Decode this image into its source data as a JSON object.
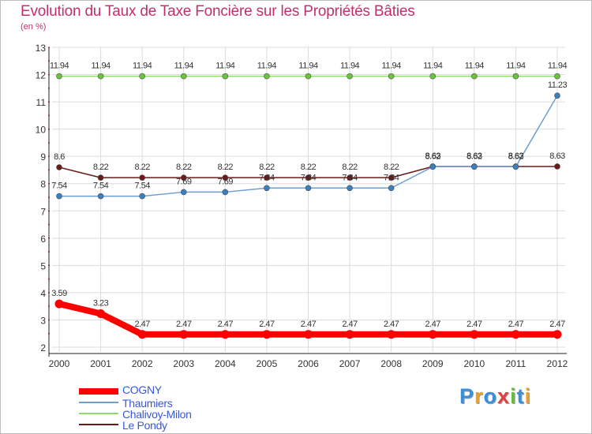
{
  "chart_data": {
    "type": "line",
    "title": "Evolution du Taux de Taxe Foncière sur les Propriétés Bâties",
    "ylabel": "(en %)",
    "xlabel": "",
    "ylim": [
      2,
      13
    ],
    "yticks": [
      2,
      3,
      4,
      5,
      6,
      7,
      8,
      9,
      10,
      11,
      12,
      13
    ],
    "categories": [
      "2000",
      "2001",
      "2002",
      "2003",
      "2004",
      "2005",
      "2006",
      "2007",
      "2008",
      "2009",
      "2010",
      "2011",
      "2012"
    ],
    "series": [
      {
        "name": "Le Pondy",
        "color": "#6b1a1a",
        "marker": "#6b1a1a",
        "values": [
          8.6,
          8.22,
          8.22,
          8.22,
          8.22,
          8.22,
          8.22,
          8.22,
          8.22,
          8.63,
          8.63,
          8.63,
          8.63
        ],
        "labels": [
          "8.6",
          "8.22",
          "8.22",
          "8.22",
          "8.22",
          "8.22",
          "8.22",
          "8.22",
          "8.22",
          "8.63",
          "8.63",
          "8.63",
          "8.63"
        ]
      },
      {
        "name": "Thaumiers",
        "color": "#6e9ecf",
        "marker": "#3a7fc1",
        "values": [
          7.54,
          7.54,
          7.54,
          7.69,
          7.69,
          7.84,
          7.84,
          7.84,
          7.84,
          8.62,
          8.62,
          8.62,
          11.23
        ],
        "labels": [
          "7.54",
          "7.54",
          "7.54",
          "7.69",
          "7.69",
          "7.84",
          "7.84",
          "7.84",
          "7.84",
          "8.62",
          "8.62",
          "8.62",
          "11.23"
        ]
      },
      {
        "name": "Chalivoy-Milon",
        "color": "#8fdc6e",
        "marker": "#6dc23e",
        "values": [
          11.94,
          11.94,
          11.94,
          11.94,
          11.94,
          11.94,
          11.94,
          11.94,
          11.94,
          11.94,
          11.94,
          11.94,
          11.94
        ],
        "labels": [
          "11.94",
          "11.94",
          "11.94",
          "11.94",
          "11.94",
          "11.94",
          "11.94",
          "11.94",
          "11.94",
          "11.94",
          "11.94",
          "11.94",
          "11.94"
        ]
      },
      {
        "name": "COGNY",
        "color": "#ff0000",
        "marker": "#ff0000",
        "values": [
          3.59,
          3.23,
          2.47,
          2.47,
          2.47,
          2.47,
          2.47,
          2.47,
          2.47,
          2.47,
          2.47,
          2.47,
          2.47
        ],
        "labels": [
          "3.59",
          "3.23",
          "2.47",
          "2.47",
          "2.47",
          "2.47",
          "2.47",
          "2.47",
          "2.47",
          "2.47",
          "2.47",
          "2.47",
          "2.47"
        ]
      }
    ],
    "legend": [
      "COGNY",
      "Thaumiers",
      "Chalivoy-Milon",
      "Le Pondy"
    ],
    "legend_position": "bottom-left"
  },
  "branding": {
    "logo_text": "Proxiti"
  }
}
